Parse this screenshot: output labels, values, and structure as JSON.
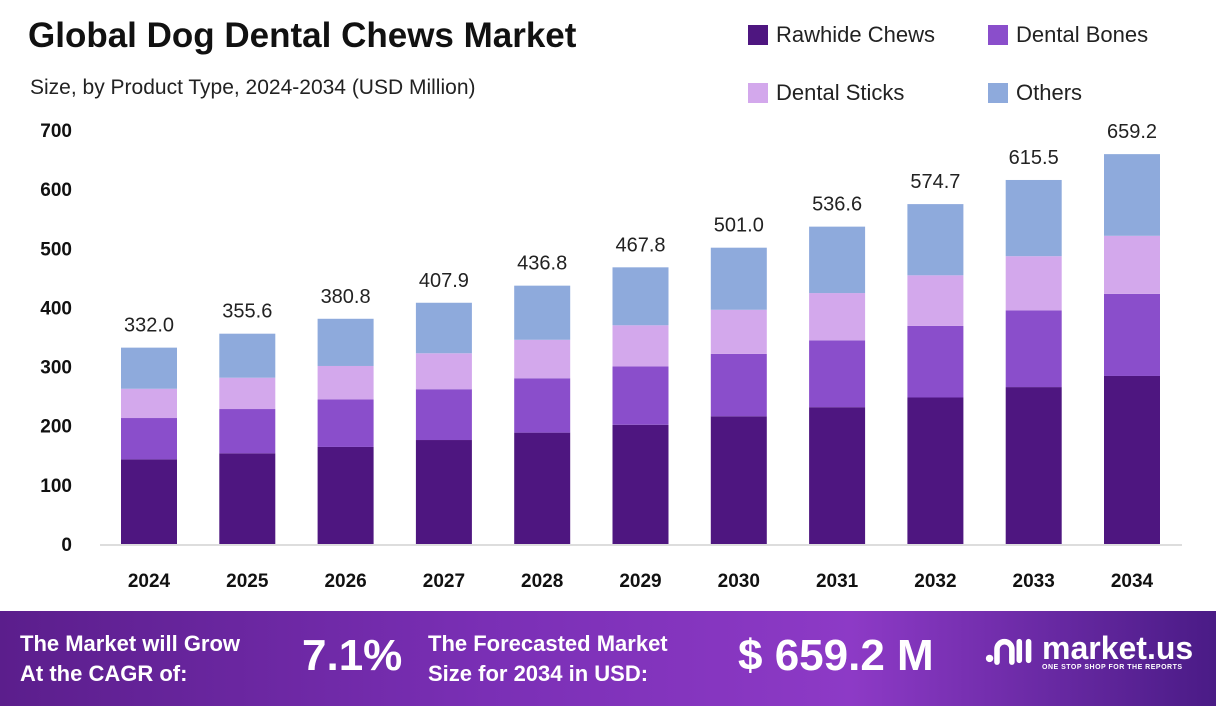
{
  "chart_data": {
    "type": "bar",
    "stacked": true,
    "title": "Global Dog Dental Chews Market",
    "subtitle": "Size, by Product Type, 2024-2034 (USD Million)",
    "categories": [
      "2024",
      "2025",
      "2026",
      "2027",
      "2028",
      "2029",
      "2030",
      "2031",
      "2032",
      "2033",
      "2034"
    ],
    "totals": [
      "332.0",
      "355.6",
      "380.8",
      "407.9",
      "436.8",
      "467.8",
      "501.0",
      "536.6",
      "574.7",
      "615.5",
      "659.2"
    ],
    "series": [
      {
        "name": "Rawhide Chews",
        "color": "#4e1680",
        "values": [
          143.1,
          153.3,
          164.1,
          175.8,
          188.3,
          201.6,
          215.9,
          231.3,
          247.7,
          265.3,
          284.1
        ]
      },
      {
        "name": "Dental Bones",
        "color": "#8a4ecb",
        "values": [
          69.9,
          74.9,
          80.2,
          85.9,
          91.9,
          98.5,
          105.5,
          113.0,
          121.0,
          129.6,
          138.8
        ]
      },
      {
        "name": "Dental Sticks",
        "color": "#d3a8ec",
        "values": [
          49.5,
          53.0,
          56.7,
          60.8,
          65.1,
          69.7,
          74.6,
          80.0,
          85.6,
          91.7,
          98.2
        ]
      },
      {
        "name": "Others",
        "color": "#8eaadc",
        "values": [
          69.5,
          74.4,
          79.8,
          85.4,
          91.5,
          98.0,
          105.0,
          112.3,
          120.4,
          128.9,
          138.1
        ]
      }
    ],
    "yticks": [
      "0",
      "100",
      "200",
      "300",
      "400",
      "500",
      "600",
      "700"
    ],
    "ylim": [
      0,
      700
    ],
    "grid": false,
    "legend_placement": "top-right"
  },
  "footer": {
    "cagr_label_1": "The Market will Grow",
    "cagr_label_2": "At the CAGR of:",
    "cagr_value": "7.1%",
    "forecast_label_1": "The Forecasted Market",
    "forecast_label_2": "Size for 2034 in USD:",
    "forecast_value": "$ 659.2 M",
    "logo_name": "market.us",
    "logo_tagline": "ONE STOP SHOP FOR THE REPORTS"
  }
}
